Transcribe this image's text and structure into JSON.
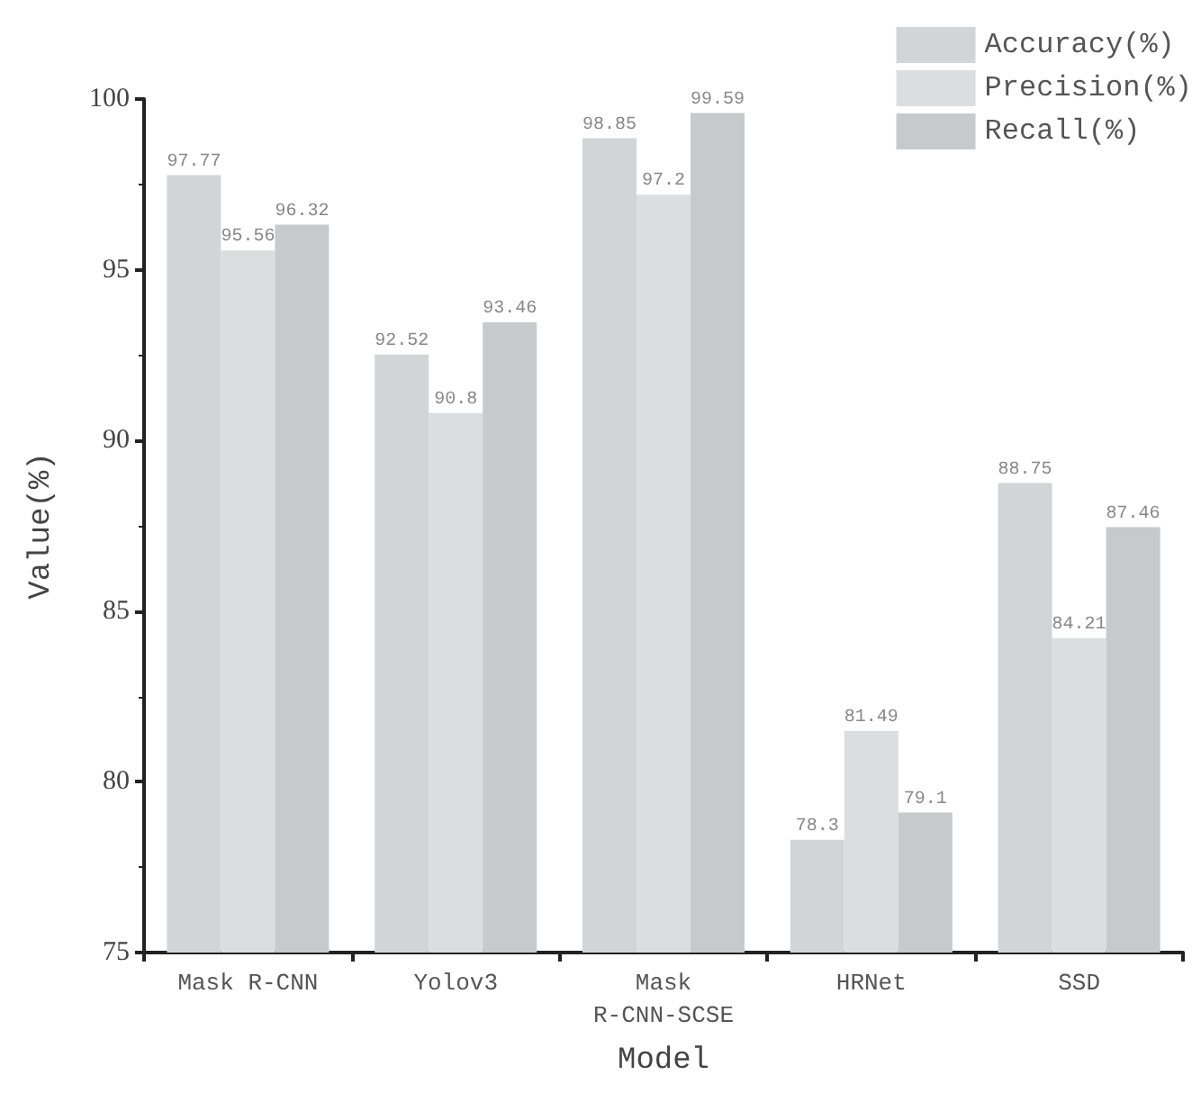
{
  "chart_data": {
    "type": "bar",
    "xlabel": "Model",
    "ylabel": "Value(%)",
    "categories": [
      "Mask R-CNN",
      "Yolov3",
      "Mask\nR-CNN-SCSE",
      "HRNet",
      "SSD"
    ],
    "series": [
      {
        "name": "Accuracy(%)",
        "color": "#d3d4d6",
        "values": [
          97.77,
          92.52,
          98.85,
          78.3,
          88.75
        ]
      },
      {
        "name": "Precision(%)",
        "color": "#dcdddf",
        "values": [
          95.56,
          90.8,
          97.2,
          81.49,
          84.21
        ]
      },
      {
        "name": "Recall(%)",
        "color": "#c8c9cb",
        "values": [
          96.32,
          93.46,
          99.59,
          79.1,
          87.46
        ]
      }
    ],
    "ylim": [
      75,
      100
    ],
    "yticks": [
      75,
      80,
      85,
      90,
      95,
      100
    ],
    "data_labels": true,
    "grid": false,
    "legend": "top right"
  }
}
